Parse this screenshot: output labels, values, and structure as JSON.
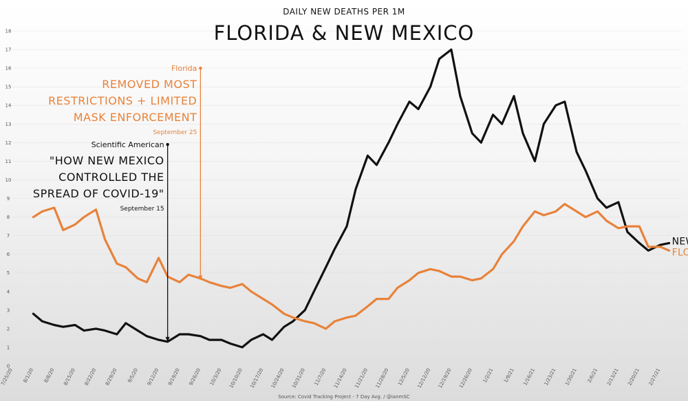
{
  "chart_data": {
    "type": "line",
    "subtitle": "DAILY NEW DEATHS PER 1M",
    "title": "FLORIDA & NEW MEXICO",
    "source": "Source: Covid Tracking Project - 7 Day Avg. / @ianmSC",
    "ylim": [
      0,
      18
    ],
    "y_ticks": [
      "0",
      "1",
      "2",
      "3",
      "4",
      "5",
      "6",
      "7",
      "8",
      "9",
      "10",
      "11",
      "12",
      "13",
      "14",
      "15",
      "16",
      "17",
      "18"
    ],
    "x_ticks": [
      "7/25/20",
      "8/1/20",
      "8/8/20",
      "8/15/20",
      "8/22/20",
      "8/29/20",
      "9/5/20",
      "9/12/20",
      "9/19/20",
      "9/26/20",
      "10/3/20",
      "10/10/20",
      "10/17/20",
      "10/24/20",
      "10/31/20",
      "11/7/20",
      "11/14/20",
      "11/21/20",
      "11/28/20",
      "12/5/20",
      "12/12/20",
      "12/19/20",
      "12/26/20",
      "1/2/21",
      "1/9/21",
      "1/16/21",
      "1/23/21",
      "1/30/21",
      "2/6/21",
      "2/13/21",
      "2/20/21",
      "2/27/21"
    ],
    "x": [
      "8/1/20",
      "8/4/20",
      "8/8/20",
      "8/11/20",
      "8/15/20",
      "8/18/20",
      "8/22/20",
      "8/25/20",
      "8/29/20",
      "9/1/20",
      "9/5/20",
      "9/8/20",
      "9/12/20",
      "9/15/20",
      "9/19/20",
      "9/22/20",
      "9/26/20",
      "9/29/20",
      "10/3/20",
      "10/6/20",
      "10/10/20",
      "10/13/20",
      "10/17/20",
      "10/20/20",
      "10/24/20",
      "10/27/20",
      "10/31/20",
      "11/3/20",
      "11/7/20",
      "11/10/20",
      "11/14/20",
      "11/17/20",
      "11/21/20",
      "11/24/20",
      "11/28/20",
      "12/1/20",
      "12/5/20",
      "12/8/20",
      "12/12/20",
      "12/15/20",
      "12/19/20",
      "12/22/20",
      "12/26/20",
      "12/29/20",
      "1/2/21",
      "1/5/21",
      "1/9/21",
      "1/12/21",
      "1/16/21",
      "1/19/21",
      "1/23/21",
      "1/26/21",
      "1/30/21",
      "2/2/21",
      "2/6/21",
      "2/9/21",
      "2/13/21",
      "2/16/21",
      "2/20/21",
      "2/23/21",
      "2/27/21",
      "3/2/21"
    ],
    "series": [
      {
        "name": "NEW MEXICO",
        "color": "#111111",
        "values": [
          2.8,
          2.4,
          2.2,
          2.1,
          2.2,
          1.9,
          2.0,
          1.9,
          1.7,
          2.3,
          1.9,
          1.6,
          1.4,
          1.3,
          1.7,
          1.7,
          1.6,
          1.4,
          1.4,
          1.2,
          1.0,
          1.4,
          1.7,
          1.4,
          2.1,
          2.4,
          3.0,
          4.0,
          5.3,
          6.3,
          7.5,
          9.5,
          11.3,
          10.8,
          12.0,
          13.0,
          14.2,
          13.8,
          15.0,
          16.5,
          17.0,
          14.5,
          12.5,
          12.0,
          13.5,
          13.0,
          14.5,
          12.5,
          11.0,
          13.0,
          14.0,
          14.2,
          11.5,
          10.5,
          9.0,
          8.5,
          8.8,
          7.2,
          6.6,
          6.2,
          6.5,
          6.6
        ]
      },
      {
        "name": "FLORIDA",
        "color": "#e8823a",
        "values": [
          8.0,
          8.3,
          8.5,
          7.3,
          7.6,
          8.0,
          8.4,
          6.8,
          5.5,
          5.3,
          4.7,
          4.5,
          5.8,
          4.8,
          4.5,
          4.9,
          4.7,
          4.5,
          4.3,
          4.2,
          4.4,
          4.0,
          3.6,
          3.3,
          2.8,
          2.6,
          2.4,
          2.3,
          2.0,
          2.4,
          2.6,
          2.7,
          3.2,
          3.6,
          3.6,
          4.2,
          4.6,
          5.0,
          5.2,
          5.1,
          4.8,
          4.8,
          4.6,
          4.7,
          5.2,
          6.0,
          6.7,
          7.5,
          8.3,
          8.1,
          8.3,
          8.7,
          8.3,
          8.0,
          8.3,
          7.8,
          7.4,
          7.5,
          7.5,
          6.4,
          6.4,
          6.2
        ]
      }
    ],
    "annotations": [
      {
        "date": "9/26/20",
        "top": 16.0,
        "bottom": 4.6,
        "color": "#e8823a",
        "source": "Florida",
        "lines": [
          "REMOVED MOST",
          "RESTRICTIONS + LIMITED",
          "MASK ENFORCEMENT"
        ],
        "date_label": "September 25"
      },
      {
        "date": "9/15/20",
        "top": 11.9,
        "bottom": 1.3,
        "color": "#111111",
        "source": "Scientific American",
        "lines": [
          "\"HOW NEW MEXICO",
          "CONTROLLED THE",
          "SPREAD OF COVID-19\""
        ],
        "date_label": "September 15"
      }
    ]
  }
}
